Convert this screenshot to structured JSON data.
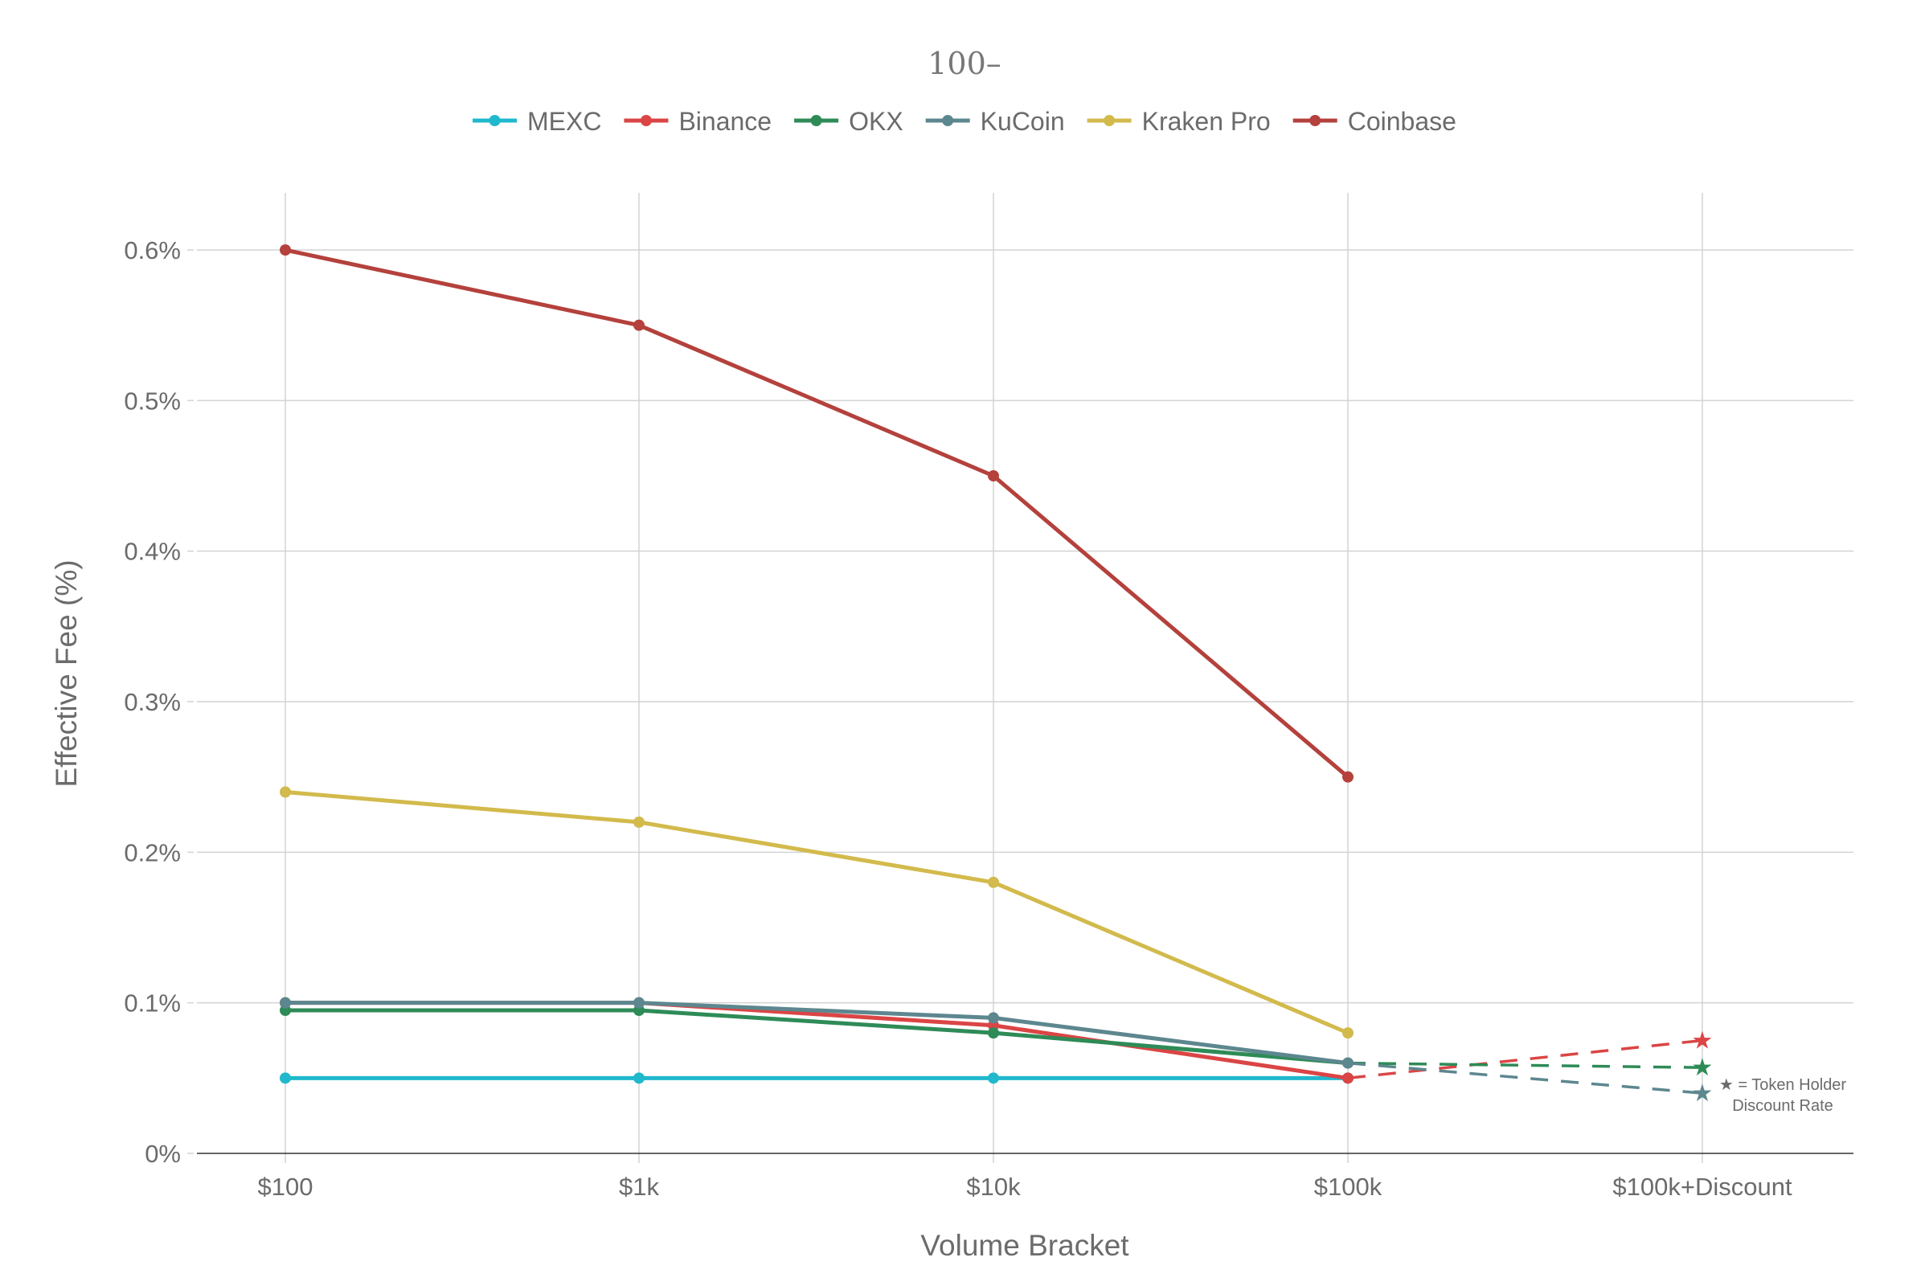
{
  "chart_data": {
    "type": "line",
    "title": "",
    "stray_label": "100–",
    "xlabel": "Volume Bracket",
    "ylabel": "Effective Fee (%)",
    "categories": [
      "$100",
      "$1k",
      "$10k",
      "$100k",
      "$100k+Discount"
    ],
    "ylim": [
      0,
      0.64
    ],
    "yticks": [
      0,
      0.1,
      0.2,
      0.3,
      0.4,
      0.5,
      0.6
    ],
    "ytick_labels": [
      "0%",
      "0.1%",
      "0.2%",
      "0.3%",
      "0.4%",
      "0.5%",
      "0.6%"
    ],
    "grid": true,
    "legend_position": "top-center",
    "series": [
      {
        "name": "MEXC",
        "color": "#1FB8CD",
        "values": [
          0.05,
          0.05,
          0.05,
          0.05,
          null
        ],
        "discount": null
      },
      {
        "name": "Binance",
        "color": "#DB4545",
        "values": [
          0.1,
          0.1,
          0.085,
          0.05,
          null
        ],
        "discount": 0.075
      },
      {
        "name": "OKX",
        "color": "#2E8B57",
        "values": [
          0.095,
          0.095,
          0.08,
          0.06,
          null
        ],
        "discount": 0.057
      },
      {
        "name": "KuCoin",
        "color": "#5D878F",
        "values": [
          0.1,
          0.1,
          0.09,
          0.06,
          null
        ],
        "discount": 0.04
      },
      {
        "name": "Kraken Pro",
        "color": "#D2BA4C",
        "values": [
          0.24,
          0.22,
          0.18,
          0.08,
          null
        ],
        "discount": null
      },
      {
        "name": "Coinbase",
        "color": "#B4413C",
        "values": [
          0.6,
          0.55,
          0.45,
          0.25,
          null
        ],
        "discount": null
      }
    ],
    "annotation": {
      "line1": "★ = Token Holder",
      "line2": "Discount Rate"
    }
  }
}
